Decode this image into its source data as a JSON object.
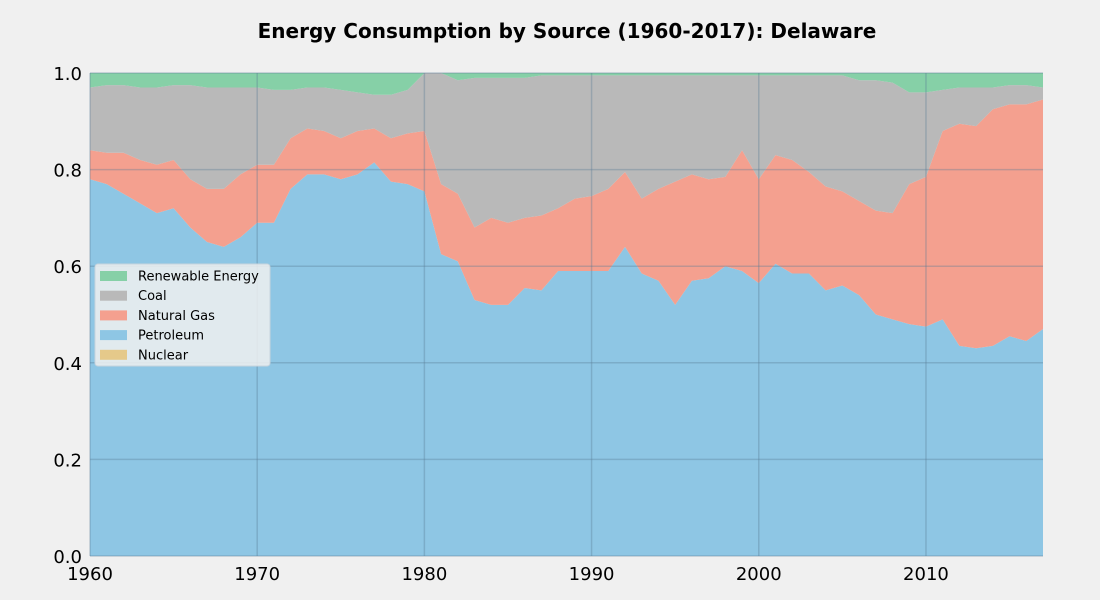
{
  "chart_data": {
    "type": "area",
    "stacked": true,
    "normalized": true,
    "title": "Energy Consumption by Source (1960-2017): Delaware",
    "xlabel": "",
    "ylabel": "",
    "xlim": [
      1960,
      2017
    ],
    "ylim": [
      0,
      1
    ],
    "xticks": [
      1960,
      1970,
      1980,
      1990,
      2000,
      2010
    ],
    "yticks": [
      "0.0",
      "0.2",
      "0.4",
      "0.6",
      "0.8",
      "1.0"
    ],
    "grid": true,
    "legend_position": "center-left",
    "legend_order": [
      "Renewable Energy",
      "Coal",
      "Natural Gas",
      "Petroleum",
      "Nuclear"
    ],
    "x": [
      1960,
      1961,
      1962,
      1963,
      1964,
      1965,
      1966,
      1967,
      1968,
      1969,
      1970,
      1971,
      1972,
      1973,
      1974,
      1975,
      1976,
      1977,
      1978,
      1979,
      1980,
      1981,
      1982,
      1983,
      1984,
      1985,
      1986,
      1987,
      1988,
      1989,
      1990,
      1991,
      1992,
      1993,
      1994,
      1995,
      1996,
      1997,
      1998,
      1999,
      2000,
      2001,
      2002,
      2003,
      2004,
      2005,
      2006,
      2007,
      2008,
      2009,
      2010,
      2011,
      2012,
      2013,
      2014,
      2015,
      2016,
      2017
    ],
    "series": [
      {
        "name": "Nuclear",
        "color": "#e5c98a",
        "values": [
          0,
          0,
          0,
          0,
          0,
          0,
          0,
          0,
          0,
          0,
          0,
          0,
          0,
          0,
          0,
          0,
          0,
          0,
          0,
          0,
          0,
          0,
          0,
          0,
          0,
          0,
          0,
          0,
          0,
          0,
          0,
          0,
          0,
          0,
          0,
          0,
          0,
          0,
          0,
          0,
          0,
          0,
          0,
          0,
          0,
          0,
          0,
          0,
          0,
          0,
          0,
          0,
          0,
          0,
          0,
          0,
          0,
          0
        ]
      },
      {
        "name": "Petroleum",
        "color": "#8ec6e4",
        "values": [
          0.78,
          0.77,
          0.75,
          0.73,
          0.71,
          0.72,
          0.68,
          0.65,
          0.64,
          0.66,
          0.69,
          0.69,
          0.76,
          0.79,
          0.79,
          0.78,
          0.79,
          0.815,
          0.775,
          0.77,
          0.755,
          0.625,
          0.61,
          0.53,
          0.52,
          0.52,
          0.555,
          0.55,
          0.59,
          0.59,
          0.59,
          0.59,
          0.64,
          0.585,
          0.57,
          0.52,
          0.57,
          0.575,
          0.6,
          0.59,
          0.565,
          0.605,
          0.585,
          0.585,
          0.55,
          0.56,
          0.54,
          0.5,
          0.49,
          0.48,
          0.475,
          0.49,
          0.435,
          0.43,
          0.435,
          0.455,
          0.445,
          0.47
        ]
      },
      {
        "name": "Natural Gas",
        "color": "#f4a08f",
        "values": [
          0.06,
          0.065,
          0.085,
          0.09,
          0.1,
          0.1,
          0.1,
          0.11,
          0.12,
          0.13,
          0.12,
          0.12,
          0.105,
          0.095,
          0.09,
          0.085,
          0.09,
          0.07,
          0.09,
          0.105,
          0.125,
          0.145,
          0.14,
          0.15,
          0.18,
          0.17,
          0.145,
          0.155,
          0.13,
          0.15,
          0.155,
          0.17,
          0.155,
          0.155,
          0.19,
          0.255,
          0.22,
          0.205,
          0.185,
          0.25,
          0.215,
          0.225,
          0.235,
          0.21,
          0.215,
          0.195,
          0.195,
          0.215,
          0.22,
          0.29,
          0.31,
          0.39,
          0.46,
          0.46,
          0.49,
          0.48,
          0.49,
          0.475
        ]
      },
      {
        "name": "Coal",
        "color": "#b9b9b9",
        "values": [
          0.13,
          0.14,
          0.14,
          0.15,
          0.16,
          0.155,
          0.195,
          0.21,
          0.21,
          0.18,
          0.16,
          0.155,
          0.1,
          0.085,
          0.09,
          0.1,
          0.08,
          0.07,
          0.09,
          0.09,
          0.12,
          0.23,
          0.235,
          0.31,
          0.29,
          0.3,
          0.29,
          0.29,
          0.275,
          0.255,
          0.25,
          0.235,
          0.2,
          0.255,
          0.235,
          0.22,
          0.205,
          0.215,
          0.21,
          0.155,
          0.215,
          0.165,
          0.175,
          0.2,
          0.23,
          0.24,
          0.25,
          0.27,
          0.27,
          0.19,
          0.175,
          0.085,
          0.075,
          0.08,
          0.045,
          0.04,
          0.04,
          0.025
        ]
      },
      {
        "name": "Renewable Energy",
        "color": "#86d0a7",
        "values": [
          0.03,
          0.025,
          0.025,
          0.03,
          0.03,
          0.025,
          0.025,
          0.03,
          0.03,
          0.03,
          0.03,
          0.035,
          0.035,
          0.03,
          0.03,
          0.035,
          0.04,
          0.045,
          0.045,
          0.035,
          0.0,
          0.0,
          0.015,
          0.01,
          0.01,
          0.01,
          0.01,
          0.005,
          0.005,
          0.005,
          0.005,
          0.005,
          0.005,
          0.005,
          0.005,
          0.005,
          0.005,
          0.005,
          0.005,
          0.005,
          0.005,
          0.005,
          0.005,
          0.005,
          0.005,
          0.005,
          0.015,
          0.015,
          0.02,
          0.04,
          0.04,
          0.035,
          0.03,
          0.03,
          0.03,
          0.025,
          0.025,
          0.03
        ]
      }
    ]
  }
}
